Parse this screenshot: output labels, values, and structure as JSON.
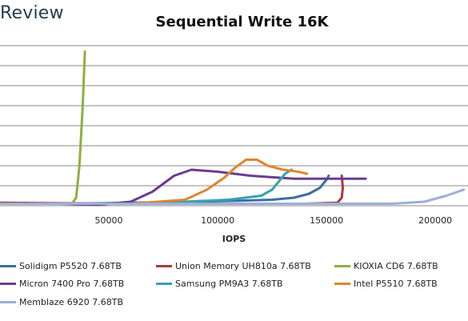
{
  "logo": {
    "text": "Review"
  },
  "chart_data": {
    "type": "line",
    "title": "Sequential Write 16K",
    "xlabel": "IOPS",
    "ylabel": "",
    "xlim": [
      0,
      215000
    ],
    "ylim": [
      0,
      8
    ],
    "x_ticks": [
      50000,
      100000,
      150000,
      200000
    ],
    "x_tick_labels": [
      "50000",
      "100000",
      "150000",
      "200000"
    ],
    "grid": true,
    "legend_position": "bottom",
    "series": [
      {
        "name": "Solidigm P5520 7.68TB",
        "color": "#3a6ea5",
        "points": [
          [
            33000,
            0.1
          ],
          [
            60000,
            0.15
          ],
          [
            90000,
            0.2
          ],
          [
            110000,
            0.25
          ],
          [
            125000,
            0.3
          ],
          [
            135000,
            0.4
          ],
          [
            142000,
            0.6
          ],
          [
            147000,
            0.9
          ],
          [
            150000,
            1.3
          ],
          [
            151000,
            1.5
          ]
        ]
      },
      {
        "name": "Union Memory UH810a 7.68TB",
        "color": "#a93a3a",
        "points": [
          [
            0,
            0.15
          ],
          [
            50000,
            0.1
          ],
          [
            100000,
            0.1
          ],
          [
            140000,
            0.1
          ],
          [
            155000,
            0.15
          ],
          [
            157000,
            0.4
          ],
          [
            157500,
            0.9
          ],
          [
            157000,
            1.5
          ]
        ]
      },
      {
        "name": "KIOXIA CD6 7.68TB",
        "color": "#8db03f",
        "points": [
          [
            33000,
            0.1
          ],
          [
            35000,
            0.4
          ],
          [
            36500,
            2.0
          ],
          [
            38000,
            5.0
          ],
          [
            39000,
            7.7
          ]
        ]
      },
      {
        "name": "Micron 7400 Pro 7.68TB",
        "color": "#6a3c8f",
        "points": [
          [
            28000,
            0.1
          ],
          [
            45000,
            0.05
          ],
          [
            60000,
            0.2
          ],
          [
            70000,
            0.7
          ],
          [
            80000,
            1.5
          ],
          [
            88000,
            1.8
          ],
          [
            100000,
            1.7
          ],
          [
            115000,
            1.5
          ],
          [
            135000,
            1.35
          ],
          [
            155000,
            1.35
          ],
          [
            168000,
            1.35
          ]
        ]
      },
      {
        "name": "Samsung PM9A3 7.68TB",
        "color": "#3ca0b0",
        "points": [
          [
            62000,
            0.1
          ],
          [
            85000,
            0.2
          ],
          [
            105000,
            0.3
          ],
          [
            120000,
            0.5
          ],
          [
            125000,
            0.8
          ],
          [
            128000,
            1.2
          ],
          [
            131000,
            1.6
          ],
          [
            134000,
            1.8
          ]
        ]
      },
      {
        "name": "Intel P5510 7.68TB",
        "color": "#e0862e",
        "points": [
          [
            60000,
            0.1
          ],
          [
            85000,
            0.3
          ],
          [
            95000,
            0.8
          ],
          [
            103000,
            1.4
          ],
          [
            108000,
            1.9
          ],
          [
            113000,
            2.3
          ],
          [
            118000,
            2.3
          ],
          [
            123000,
            2.0
          ],
          [
            130000,
            1.8
          ],
          [
            137000,
            1.7
          ],
          [
            141000,
            1.6
          ]
        ]
      },
      {
        "name": "Memblaze 6920 7.68TB",
        "color": "#9bb0d8",
        "points": [
          [
            0,
            0.1
          ],
          [
            60000,
            0.1
          ],
          [
            120000,
            0.1
          ],
          [
            180000,
            0.1
          ],
          [
            195000,
            0.2
          ],
          [
            205000,
            0.5
          ],
          [
            213000,
            0.8
          ]
        ]
      }
    ]
  }
}
